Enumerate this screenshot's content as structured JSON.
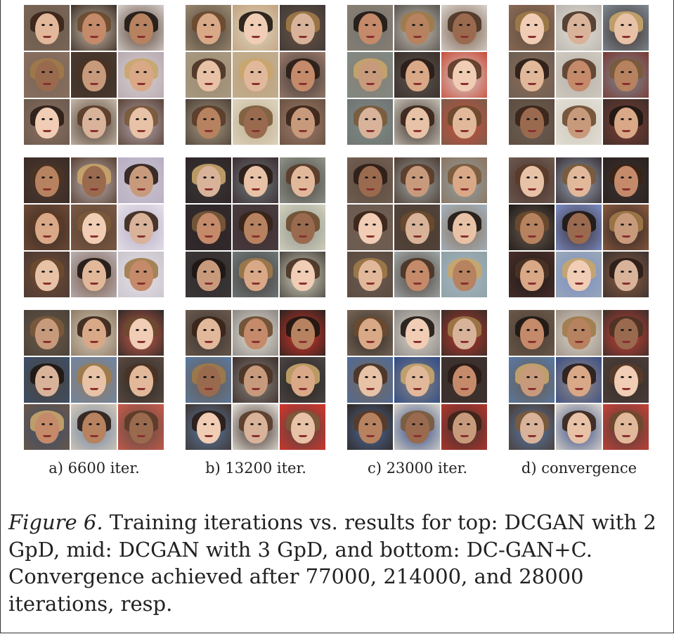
{
  "figure": {
    "panels": [
      {
        "label": "a) 6600 iter."
      },
      {
        "label": "b) 13200 iter."
      },
      {
        "label": "c) 23000 iter."
      },
      {
        "label": "d) convergence"
      }
    ],
    "rows": [
      "top",
      "mid",
      "bottom"
    ]
  },
  "caption": {
    "figure_label": "Figure 6.",
    "text": "Training iterations vs. results for top: DCGAN with 2 GpD, mid: DCGAN with 3 GpD, and bottom: DC-GAN+C. Convergence achieved after 77000, 214000, and 28000 iterations, resp."
  }
}
